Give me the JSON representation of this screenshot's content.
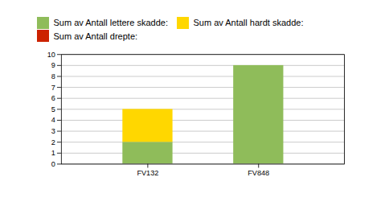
{
  "chart_data": {
    "type": "bar",
    "stacked": true,
    "categories": [
      "FV132",
      "FV848"
    ],
    "series": [
      {
        "name": "Sum av Antall lettere skadde:",
        "color": "#8fbc5a",
        "values": [
          2,
          9
        ]
      },
      {
        "name": "Sum av Antall hardt skadde:",
        "color": "#ffd700",
        "values": [
          3,
          0
        ]
      },
      {
        "name": "Sum av Antall drepte:",
        "color": "#cc2200",
        "values": [
          0,
          0
        ]
      }
    ],
    "ylim": [
      0,
      10
    ],
    "yticks": [
      0,
      1,
      2,
      3,
      4,
      5,
      6,
      7,
      8,
      9,
      10
    ],
    "grid": true,
    "legend": "top"
  }
}
